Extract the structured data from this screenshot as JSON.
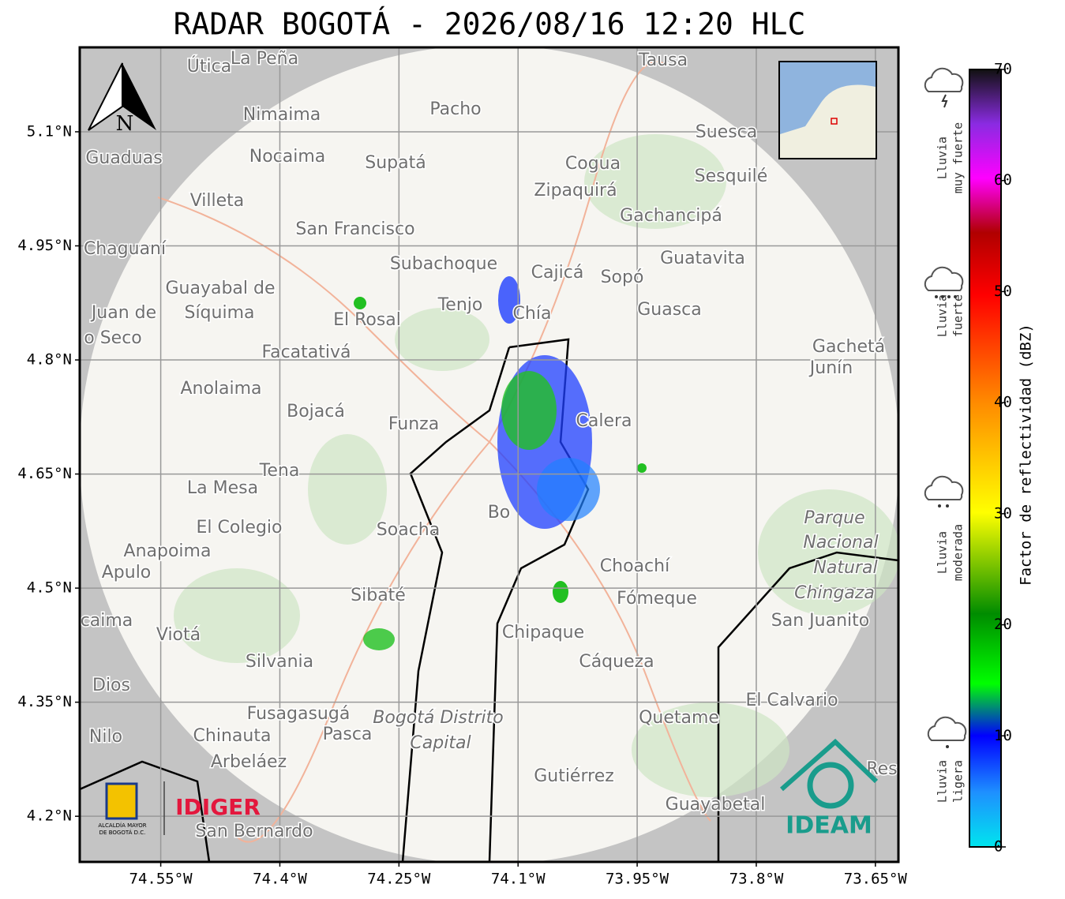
{
  "title": "RADAR BOGOTÁ - 2026/08/16 12:20 HLC",
  "map": {
    "xlim": [
      -74.652,
      -73.621
    ],
    "ylim": [
      4.14,
      5.211
    ],
    "lat_ticks": [
      {
        "value": 5.1,
        "label": "5.1°N"
      },
      {
        "value": 4.95,
        "label": "4.95°N"
      },
      {
        "value": 4.8,
        "label": "4.8°N"
      },
      {
        "value": 4.65,
        "label": "4.65°N"
      },
      {
        "value": 4.5,
        "label": "4.5°N"
      },
      {
        "value": 4.35,
        "label": "4.35°N"
      },
      {
        "value": 4.2,
        "label": "4.2°N"
      }
    ],
    "lon_ticks": [
      {
        "value": -74.55,
        "label": "74.55°W"
      },
      {
        "value": -74.4,
        "label": "74.4°W"
      },
      {
        "value": -74.25,
        "label": "74.25°W"
      },
      {
        "value": -74.1,
        "label": "74.1°W"
      },
      {
        "value": -73.95,
        "label": "73.95°W"
      },
      {
        "value": -73.8,
        "label": "73.8°W"
      },
      {
        "value": -73.65,
        "label": "73.65°W"
      }
    ],
    "north": "N",
    "places": [
      "Útica",
      "La Peña",
      "Tausa",
      "Pacho",
      "Nimaima",
      "Suesca",
      "Guaduas",
      "Nocaima",
      "Supatá",
      "Cogua",
      "Sesquilé",
      "Zipaquirá",
      "Villeta",
      "Gachancipá",
      "San Francisco",
      "Chaguaní",
      "Guatavita",
      "Subachoque",
      "Cajicá",
      "Sopó",
      "Guayabal de",
      "Síquima",
      "Tenjo",
      "Chía",
      "Guasca",
      "Juan de",
      "El Rosal",
      "o Seco",
      "Facatativá",
      "Gachetá",
      "Junín",
      "Anolaima",
      "Bojacá",
      "Funza",
      "Calera",
      "Tena",
      "La Mesa",
      "Parque",
      "Nacional",
      "Natural",
      "Chingaza",
      "El Colegio",
      "Soacha",
      "Anapoima",
      "Apulo",
      "Choachí",
      "Sibaté",
      "Fómeque",
      "San Juanito",
      "caima",
      "Viotá",
      "Chipaque",
      "Silvania",
      "Cáqueza",
      "Dios",
      "El Calvario",
      "Fusagasugá",
      "Bogotá Distrito",
      "Capital",
      "Quetame",
      "Nilo",
      "Chinauta",
      "Pasca",
      "Arbeláez",
      "Gutiérrez",
      "Res",
      "Guayabetal",
      "San Bernardo",
      "Bo"
    ]
  },
  "logos": {
    "alcaldia": [
      "ALCALDÍA MAYOR",
      "DE BOGOTÁ D.C."
    ],
    "idiger": "IDIGER",
    "ideam": "IDEAM"
  },
  "colorbar": {
    "label": "Factor de reflectividad (dBZ)",
    "lim": [
      0,
      70
    ],
    "ticks": [
      0,
      10,
      20,
      30,
      40,
      50,
      60,
      70
    ]
  },
  "rain_levels": [
    [
      "Lluvia",
      "muy fuerte"
    ],
    [
      "Lluvia",
      "fuerte"
    ],
    [
      "Lluvia",
      "moderada"
    ],
    [
      "Lluvia",
      "ligera"
    ]
  ]
}
